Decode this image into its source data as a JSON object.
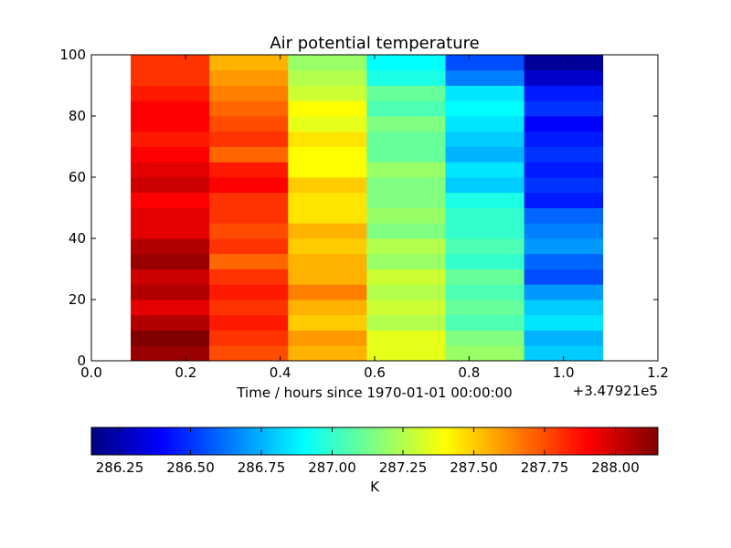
{
  "chart_data": {
    "type": "heatmap",
    "title": "Air potential temperature",
    "xlabel": "Time / hours since 1970-01-01 00:00:00",
    "x_offset_label": "+3.47921e5",
    "ylabel": "",
    "xlim": [
      0.0,
      1.2
    ],
    "ylim": [
      0,
      100
    ],
    "x_ticks": [
      0.0,
      0.2,
      0.4,
      0.6,
      0.8,
      1.0,
      1.2
    ],
    "x_tick_labels": [
      "0.0",
      "0.2",
      "0.4",
      "0.6",
      "0.8",
      "1.0",
      "1.2"
    ],
    "y_ticks": [
      0,
      20,
      40,
      60,
      80,
      100
    ],
    "y_tick_labels": [
      "0",
      "20",
      "40",
      "60",
      "80",
      "100"
    ],
    "columns": [
      {
        "x_start": 0.0833,
        "x_end": 0.25
      },
      {
        "x_start": 0.25,
        "x_end": 0.4167
      },
      {
        "x_start": 0.4167,
        "x_end": 0.5833
      },
      {
        "x_start": 0.5833,
        "x_end": 0.75
      },
      {
        "x_start": 0.75,
        "x_end": 0.9167
      },
      {
        "x_start": 0.9167,
        "x_end": 1.0833
      }
    ],
    "y_levels": [
      0,
      5,
      10,
      15,
      20,
      25,
      30,
      35,
      40,
      45,
      50,
      55,
      60,
      65,
      70,
      75,
      80,
      85,
      90,
      95,
      100
    ],
    "values": [
      [
        288.1,
        288.15,
        288.05,
        287.95,
        288.05,
        288.0,
        288.1,
        288.05,
        287.95,
        287.95,
        287.9,
        288.0,
        287.95,
        287.9,
        287.85,
        287.9,
        287.9,
        287.85,
        287.8,
        287.8
      ],
      [
        287.75,
        287.8,
        287.85,
        287.8,
        287.85,
        287.8,
        287.7,
        287.8,
        287.75,
        287.8,
        287.8,
        287.9,
        287.85,
        287.7,
        287.8,
        287.75,
        287.7,
        287.65,
        287.6,
        287.55
      ],
      [
        287.55,
        287.6,
        287.5,
        287.55,
        287.65,
        287.55,
        287.55,
        287.5,
        287.55,
        287.45,
        287.45,
        287.5,
        287.4,
        287.4,
        287.45,
        287.35,
        287.4,
        287.3,
        287.25,
        287.2
      ],
      [
        287.35,
        287.35,
        287.25,
        287.3,
        287.25,
        287.3,
        287.2,
        287.25,
        287.15,
        287.2,
        287.15,
        287.15,
        287.2,
        287.1,
        287.1,
        287.15,
        287.05,
        287.1,
        286.95,
        286.9
      ],
      [
        287.2,
        287.15,
        287.05,
        287.1,
        287.05,
        287.1,
        287.0,
        287.05,
        287.0,
        287.0,
        286.95,
        286.8,
        286.85,
        286.75,
        286.8,
        286.85,
        286.9,
        286.85,
        286.65,
        286.55
      ],
      [
        286.8,
        286.75,
        286.85,
        286.8,
        286.7,
        286.55,
        286.6,
        286.7,
        286.65,
        286.6,
        286.45,
        286.5,
        286.45,
        286.5,
        286.45,
        286.4,
        286.5,
        286.45,
        286.3,
        286.2
      ]
    ],
    "colorbar": {
      "label": "K",
      "vmin": 286.15,
      "vmax": 288.15,
      "ticks": [
        286.25,
        286.5,
        286.75,
        287.0,
        287.25,
        287.5,
        287.75,
        288.0
      ],
      "tick_labels": [
        "286.25",
        "286.50",
        "286.75",
        "287.00",
        "287.25",
        "287.50",
        "287.75",
        "288.00"
      ],
      "colormap": "jet"
    }
  }
}
